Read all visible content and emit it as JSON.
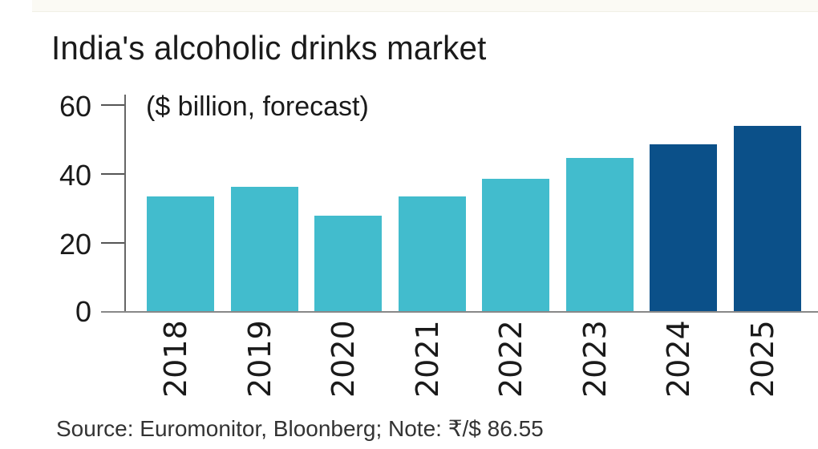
{
  "title": "India's alcoholic drinks market",
  "subtitle": "($ billion, forecast)",
  "source": "Source: Euromonitor, Bloonberg; Note: ₹/$ 86.55",
  "y_ticks": [
    "60",
    "40",
    "20",
    "0"
  ],
  "colors": {
    "historical": "#42bccd",
    "forecast": "#0b5089"
  },
  "chart_data": {
    "type": "bar",
    "title": "India's alcoholic drinks market",
    "subtitle": "($ billion, forecast)",
    "categories": [
      "2018",
      "2019",
      "2020",
      "2021",
      "2022",
      "2023",
      "2024",
      "2025"
    ],
    "values": [
      33.5,
      36.3,
      27.9,
      33.5,
      38.6,
      44.7,
      48.6,
      54.0
    ],
    "bar_colors": [
      "#42bccd",
      "#42bccd",
      "#42bccd",
      "#42bccd",
      "#42bccd",
      "#42bccd",
      "#0b5089",
      "#0b5089"
    ],
    "xlabel": "",
    "ylabel": "$ billion",
    "ylim": [
      0,
      60
    ],
    "yticks": [
      0,
      20,
      40,
      60
    ],
    "grid": false,
    "legend": null,
    "source": "Source: Euromonitor, Bloonberg; Note: ₹/$ 86.55"
  }
}
